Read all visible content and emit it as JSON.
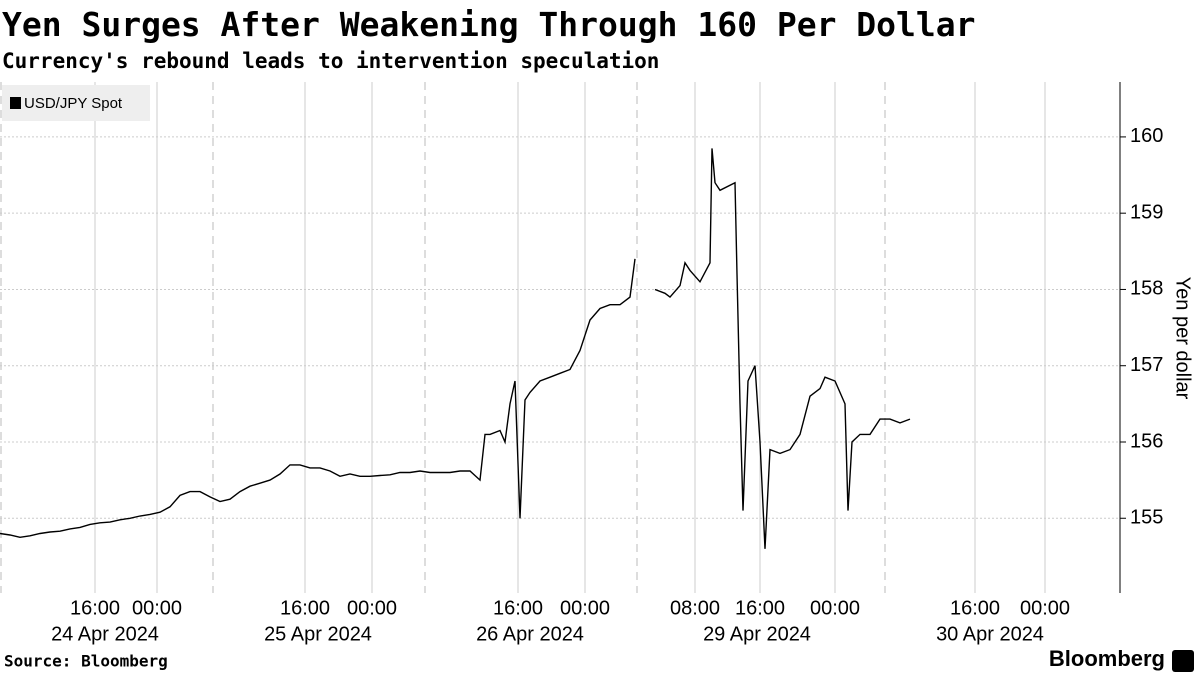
{
  "chart_data": {
    "type": "line",
    "title": "Yen Surges After Weakening Through 160 Per Dollar",
    "subtitle": "Currency's rebound leads to intervention speculation",
    "y_label": "Yen per dollar",
    "source": "Source: Bloomberg",
    "brand": "Bloomberg",
    "legend_position": "upper left",
    "grid": true,
    "xlim": [
      0,
      112
    ],
    "ylim": [
      154.02,
      160.72
    ],
    "yticks": [
      155,
      156,
      157,
      158,
      159,
      160
    ],
    "xticks": [
      {
        "value": 9.5,
        "label": "16:00"
      },
      {
        "value": 15.7,
        "label": "00:00"
      },
      {
        "value": 30.5,
        "label": "16:00"
      },
      {
        "value": 37.2,
        "label": "00:00"
      },
      {
        "value": 51.8,
        "label": "16:00"
      },
      {
        "value": 58.5,
        "label": "00:00"
      },
      {
        "value": 69.5,
        "label": "08:00"
      },
      {
        "value": 76,
        "label": "16:00"
      },
      {
        "value": 83.5,
        "label": "00:00"
      },
      {
        "value": 97.5,
        "label": "16:00"
      },
      {
        "value": 104.5,
        "label": "00:00"
      }
    ],
    "x_groups": [
      {
        "value": 10.5,
        "label": "24 Apr 2024"
      },
      {
        "value": 31.8,
        "label": "25 Apr 2024"
      },
      {
        "value": 53,
        "label": "26 Apr 2024"
      },
      {
        "value": 75.7,
        "label": "29 Apr 2024"
      },
      {
        "value": 99,
        "label": "30 Apr 2024"
      }
    ],
    "x": [
      0,
      1,
      2,
      3,
      4,
      5,
      6,
      7,
      8,
      9,
      10,
      11,
      12,
      13,
      14,
      15,
      16,
      17,
      18,
      19,
      20,
      21,
      22,
      23,
      24,
      25,
      26,
      27,
      28,
      29,
      30,
      31,
      32,
      33,
      34,
      35,
      36,
      37,
      38,
      39,
      40,
      41,
      42,
      43,
      44,
      45,
      46,
      47,
      48,
      48.5,
      49,
      50,
      50.5,
      51,
      51.5,
      52,
      52.5,
      53,
      54,
      55,
      56,
      57,
      58,
      59,
      60,
      61,
      62,
      63,
      63.5,
      64.5,
      65.5,
      66.5,
      67,
      68,
      68.5,
      69,
      70,
      71,
      71.2,
      71.5,
      72,
      73.5,
      73.7,
      74,
      74.3,
      74.8,
      75.5,
      76,
      76.5,
      77,
      78,
      79,
      80,
      81,
      82,
      82.5,
      83.5,
      84.5,
      84.8,
      85.2,
      86,
      87,
      88,
      89,
      90,
      91
    ],
    "series": [
      {
        "name": "USD/JPY Spot",
        "color": "#000000",
        "values": [
          154.8,
          154.78,
          154.75,
          154.77,
          154.8,
          154.82,
          154.83,
          154.86,
          154.88,
          154.92,
          154.94,
          154.95,
          154.98,
          155.0,
          155.03,
          155.05,
          155.08,
          155.15,
          155.3,
          155.35,
          155.35,
          155.28,
          155.22,
          155.25,
          155.35,
          155.42,
          155.46,
          155.5,
          155.58,
          155.7,
          155.7,
          155.66,
          155.66,
          155.62,
          155.55,
          155.58,
          155.55,
          155.55,
          155.56,
          155.57,
          155.6,
          155.6,
          155.62,
          155.6,
          155.6,
          155.6,
          155.62,
          155.62,
          155.5,
          156.1,
          156.1,
          156.15,
          156.0,
          156.5,
          156.8,
          155.0,
          156.55,
          156.65,
          156.8,
          156.85,
          156.9,
          156.95,
          157.2,
          157.6,
          157.75,
          157.8,
          157.8,
          157.9,
          158.4,
          null,
          158.0,
          157.95,
          157.9,
          158.05,
          158.35,
          158.25,
          158.1,
          158.35,
          159.85,
          159.4,
          159.3,
          159.4,
          158.2,
          156.5,
          155.1,
          156.8,
          157.0,
          156.0,
          154.6,
          155.9,
          155.85,
          155.9,
          156.1,
          156.6,
          156.7,
          156.85,
          156.8,
          156.5,
          155.1,
          156.0,
          156.1,
          156.1,
          156.3,
          156.3,
          156.25,
          156.3
        ]
      }
    ]
  }
}
